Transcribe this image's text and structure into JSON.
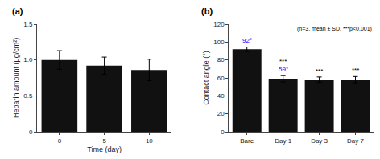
{
  "chart_data": [
    {
      "type": "bar",
      "title": "(a)",
      "categories": [
        "0",
        "5",
        "10"
      ],
      "values": [
        1.0,
        0.92,
        0.86
      ],
      "errors": [
        0.13,
        0.12,
        0.15
      ],
      "color": "#111111",
      "xlabel": "Time (day)",
      "ylabel": "Heparin amount (μg/cm²)",
      "ylim": [
        0,
        1.5
      ],
      "yticks": [
        0,
        0.5,
        {
          "value": 1.0,
          "label": "1.0"
        },
        1.5
      ]
    },
    {
      "type": "bar",
      "title": "(b)",
      "categories": [
        "Bare",
        "Day 1",
        "Day 3",
        "Day 7"
      ],
      "values": [
        92,
        59,
        58,
        58
      ],
      "errors": [
        2.5,
        3.5,
        3.0,
        3.5
      ],
      "color": "#111111",
      "ylabel": "Contact angle (°)",
      "ylim": [
        0,
        120
      ],
      "yticks": [
        0,
        20,
        40,
        60,
        80,
        100,
        120
      ],
      "annotations": [
        {
          "text": "(n=3, mean ± SD, ***p<0.001)"
        },
        {
          "text": "92°",
          "x": 0,
          "color": "blue"
        },
        {
          "text": "59°",
          "x": 1,
          "color": "blue"
        },
        {
          "text": "***",
          "x": 1
        },
        {
          "text": "***",
          "x": 2
        },
        {
          "text": "***",
          "x": 3
        }
      ]
    }
  ]
}
